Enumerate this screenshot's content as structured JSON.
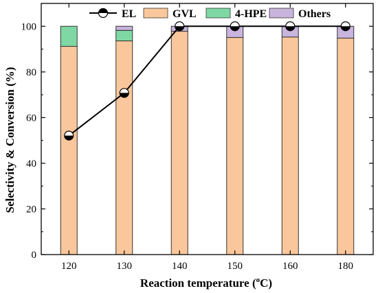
{
  "chart_data": {
    "type": "bar",
    "stacked": true,
    "categories": [
      "120",
      "130",
      "140",
      "150",
      "160",
      "180"
    ],
    "series": [
      {
        "name": "GVL",
        "color": "#f9c79b",
        "values": [
          91.2,
          93.6,
          97.8,
          95.1,
          95.3,
          94.8
        ]
      },
      {
        "name": "4-HPE",
        "color": "#7fd8a4",
        "values": [
          8.8,
          4.6,
          0,
          0,
          0,
          0
        ]
      },
      {
        "name": "Others",
        "color": "#c8b4dd",
        "values": [
          0,
          1.8,
          2.2,
          4.9,
          4.7,
          5.2
        ]
      }
    ],
    "line_series": {
      "name": "EL",
      "values": [
        52.1,
        70.8,
        100,
        100,
        100,
        100
      ]
    },
    "xlabel": "Reaction temperature (",
    "xlabel_sup": "o",
    "xlabel_suffix": "C)",
    "ylabel": "Selectivity & Conversion (%)",
    "ylim": [
      0,
      110
    ],
    "yticks": [
      "0",
      "20",
      "40",
      "60",
      "80",
      "100"
    ],
    "grid": false,
    "legend_position": "top"
  }
}
